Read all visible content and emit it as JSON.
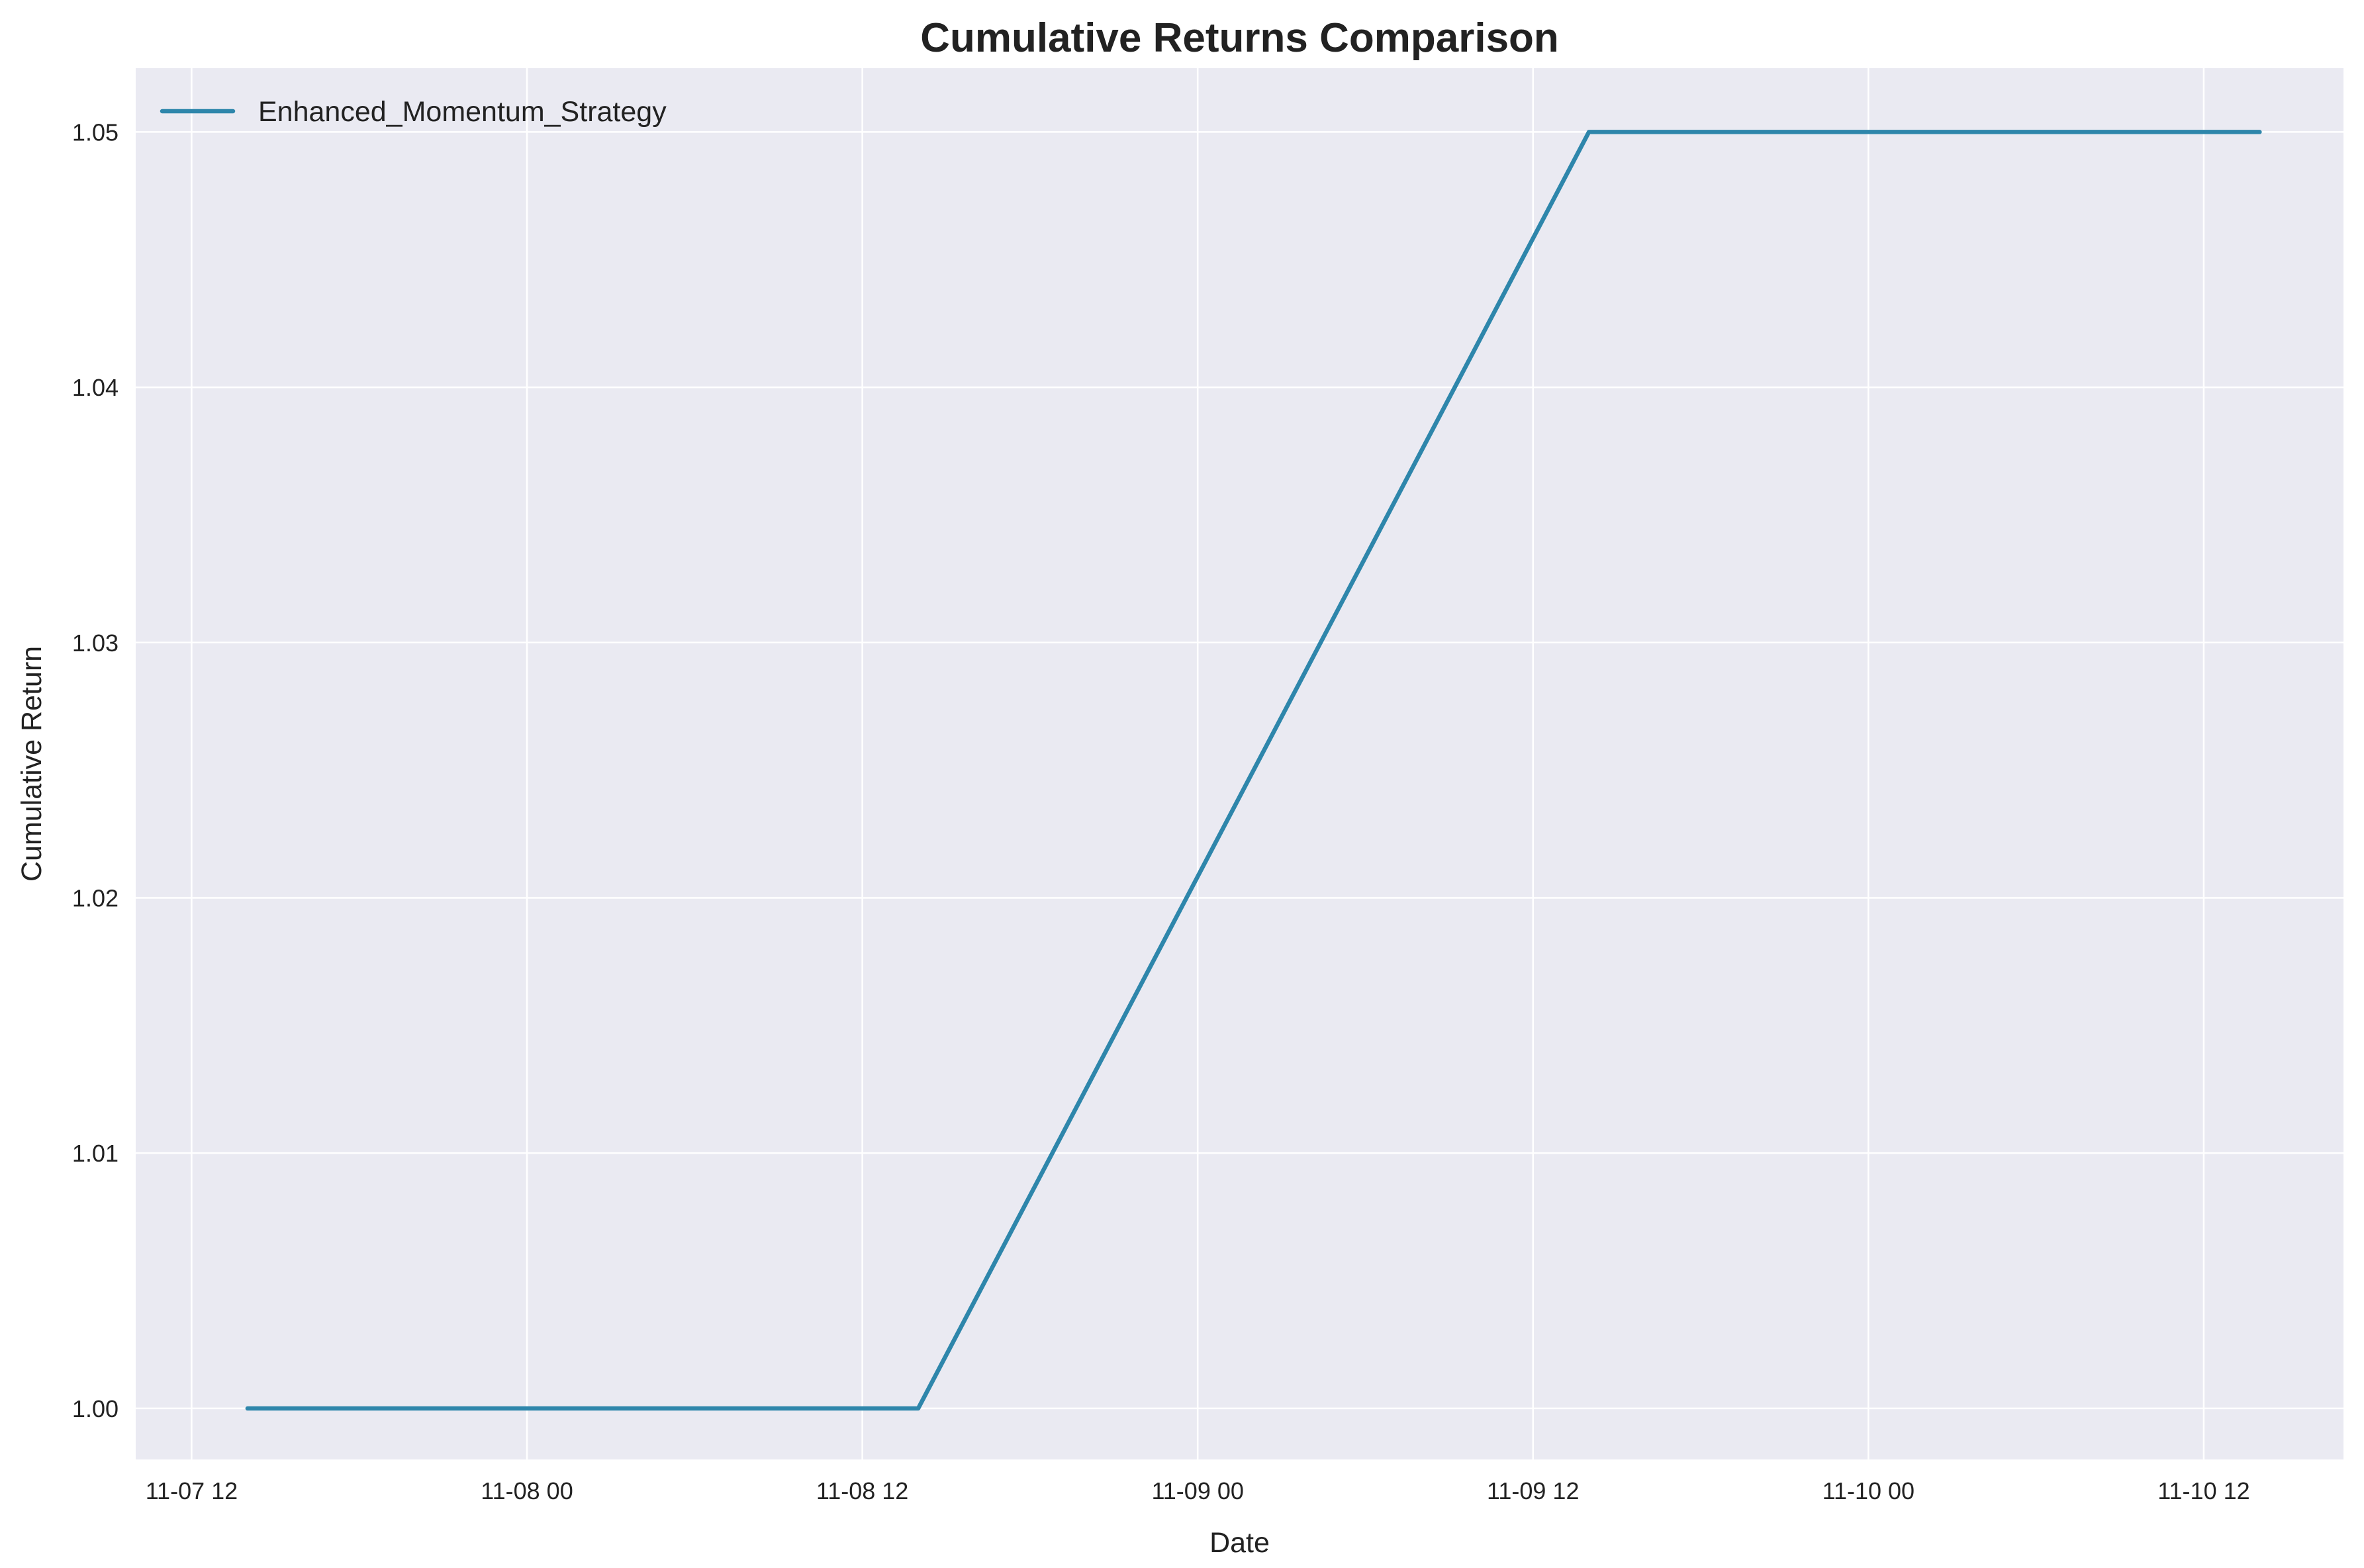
{
  "chart_data": {
    "type": "line",
    "title": "Cumulative Returns Comparison",
    "xlabel": "Date",
    "ylabel": "Cumulative Return",
    "x_ticks": [
      {
        "value": "2023-11-07T12:00",
        "label": "11-07 12"
      },
      {
        "value": "2023-11-08T00:00",
        "label": "11-08 00"
      },
      {
        "value": "2023-11-08T12:00",
        "label": "11-08 12"
      },
      {
        "value": "2023-11-09T00:00",
        "label": "11-09 00"
      },
      {
        "value": "2023-11-09T12:00",
        "label": "11-09 12"
      },
      {
        "value": "2023-11-10T00:00",
        "label": "11-10 00"
      },
      {
        "value": "2023-11-10T12:00",
        "label": "11-10 12"
      }
    ],
    "y_ticks": [
      {
        "value": 1.0,
        "label": "1.00"
      },
      {
        "value": 1.01,
        "label": "1.01"
      },
      {
        "value": 1.02,
        "label": "1.02"
      },
      {
        "value": 1.03,
        "label": "1.03"
      },
      {
        "value": 1.04,
        "label": "1.04"
      },
      {
        "value": 1.05,
        "label": "1.05"
      }
    ],
    "xlim": [
      "2023-11-07T10:00",
      "2023-11-10T17:00"
    ],
    "ylim": [
      0.998,
      1.0525
    ],
    "grid": true,
    "legend_position": "top-left",
    "series": [
      {
        "name": "Enhanced_Momentum_Strategy",
        "color": "#2e86ab",
        "x": [
          "2023-11-07T14:00",
          "2023-11-08T14:00",
          "2023-11-09T14:00",
          "2023-11-10T14:00"
        ],
        "y": [
          1.0,
          1.0,
          1.05,
          1.05
        ]
      }
    ]
  },
  "style": {
    "plot_background": "#eaeaf2",
    "grid_color": "#ffffff",
    "text_color": "#222222"
  }
}
